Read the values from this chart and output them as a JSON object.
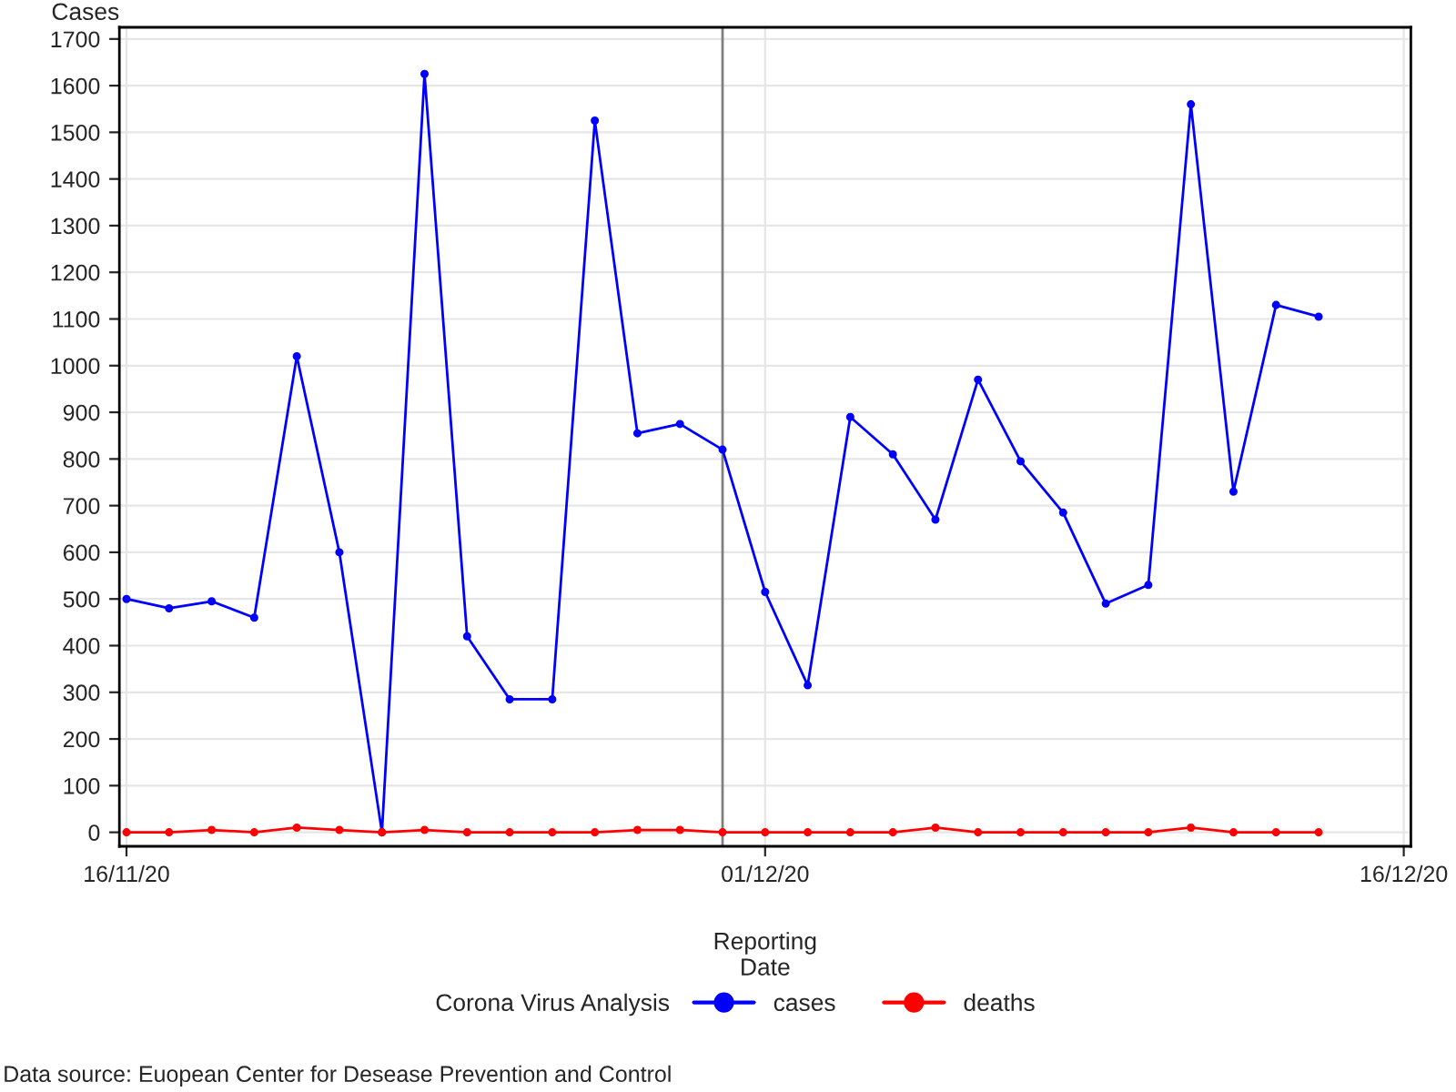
{
  "chart_data": {
    "type": "line",
    "xlabel": "Reporting\nDate",
    "ylabel": "Cases",
    "legend_title": "Corona Virus Analysis",
    "x": [
      "2020-11-16",
      "2020-11-17",
      "2020-11-18",
      "2020-11-19",
      "2020-11-20",
      "2020-11-21",
      "2020-11-22",
      "2020-11-23",
      "2020-11-24",
      "2020-11-25",
      "2020-11-26",
      "2020-11-27",
      "2020-11-28",
      "2020-11-29",
      "2020-11-30",
      "2020-12-01",
      "2020-12-02",
      "2020-12-03",
      "2020-12-04",
      "2020-12-05",
      "2020-12-06",
      "2020-12-07",
      "2020-12-08",
      "2020-12-09",
      "2020-12-10",
      "2020-12-11",
      "2020-12-12",
      "2020-12-13",
      "2020-12-14"
    ],
    "series": [
      {
        "name": "cases",
        "color": "#0000ff",
        "values": [
          500,
          480,
          495,
          460,
          1020,
          600,
          0,
          1625,
          420,
          285,
          285,
          1525,
          855,
          875,
          820,
          515,
          315,
          890,
          810,
          670,
          970,
          795,
          685,
          490,
          530,
          1560,
          730,
          1130,
          1105
        ]
      },
      {
        "name": "deaths",
        "color": "#ff0000",
        "values": [
          0,
          0,
          5,
          0,
          10,
          5,
          0,
          5,
          0,
          0,
          0,
          0,
          5,
          5,
          0,
          0,
          0,
          0,
          0,
          10,
          0,
          0,
          0,
          0,
          0,
          10,
          0,
          0,
          0
        ]
      }
    ],
    "xlim": [
      "2020-11-15T20:00",
      "2020-12-16T04:00"
    ],
    "xticks": [
      {
        "value": "2020-11-16",
        "label": "16/11/20"
      },
      {
        "value": "2020-12-01",
        "label": "01/12/20"
      },
      {
        "value": "2020-12-16",
        "label": "16/12/20"
      }
    ],
    "ylim": [
      -30,
      1725
    ],
    "yticks": [
      0,
      100,
      200,
      300,
      400,
      500,
      600,
      700,
      800,
      900,
      1000,
      1100,
      1200,
      1300,
      1400,
      1500,
      1600,
      1700
    ],
    "ref_lines": [
      {
        "axis": "x",
        "value": "2020-11-30",
        "label": null,
        "color": "#808080"
      }
    ],
    "grid": true,
    "legend": "bottom",
    "marker": "circle",
    "line_style": "solid",
    "annotations": [
      "Data source: Euopean Center for Desease Prevention and Control"
    ]
  }
}
